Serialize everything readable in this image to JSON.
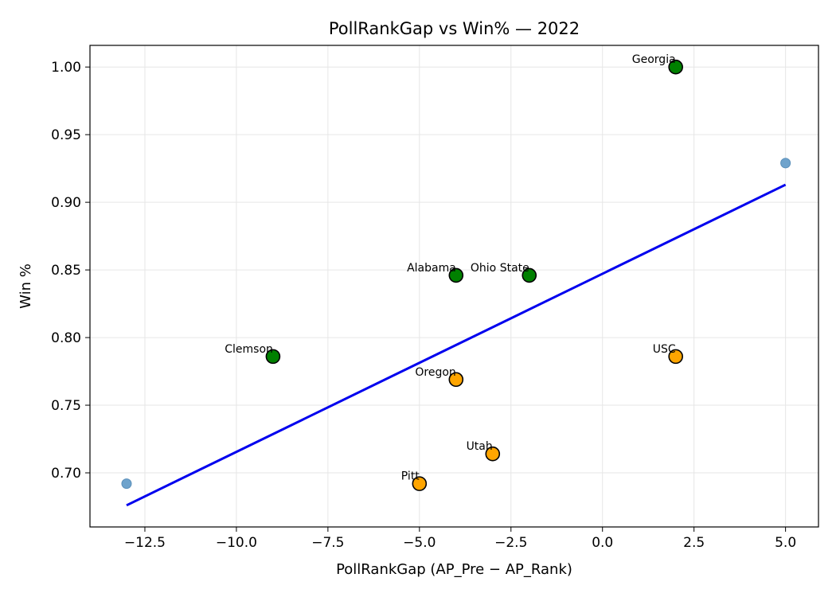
{
  "chart_data": {
    "type": "scatter",
    "title": "PollRankGap vs Win%  — 2022",
    "xlabel": "PollRankGap (AP_Pre − AP_Rank)",
    "ylabel": "Win %",
    "xlim": [
      -14.0,
      5.9
    ],
    "ylim": [
      0.66,
      1.016
    ],
    "grid": true,
    "x_ticks": [
      -12.5,
      -10.0,
      -7.5,
      -5.0,
      -2.5,
      0.0,
      2.5,
      5.0
    ],
    "x_tick_labels": [
      "−12.5",
      "−10.0",
      "−7.5",
      "−5.0",
      "−2.5",
      "0.0",
      "2.5",
      "5.0"
    ],
    "y_ticks": [
      0.7,
      0.75,
      0.8,
      0.85,
      0.9,
      0.95,
      1.0
    ],
    "y_tick_labels": [
      "0.70",
      "0.75",
      "0.80",
      "0.85",
      "0.90",
      "0.95",
      "1.00"
    ],
    "colors": {
      "green": "#008000",
      "orange": "#ffa500",
      "small_point": "#6fa3cc",
      "trend_line": "#0000ee",
      "grid": "#e6e6e6"
    },
    "series": [
      {
        "group": "green",
        "points": [
          {
            "label": "Georgia",
            "x": 2,
            "y": 1.0
          },
          {
            "label": "Alabama",
            "x": -4,
            "y": 0.846
          },
          {
            "label": "Ohio State",
            "x": -2,
            "y": 0.846
          },
          {
            "label": "Clemson",
            "x": -9,
            "y": 0.786
          }
        ]
      },
      {
        "group": "orange",
        "points": [
          {
            "label": "USC",
            "x": 2,
            "y": 0.786
          },
          {
            "label": "Oregon",
            "x": -4,
            "y": 0.769
          },
          {
            "label": "Utah",
            "x": -3,
            "y": 0.714
          },
          {
            "label": "Pitt",
            "x": -5,
            "y": 0.692
          }
        ]
      },
      {
        "group": "small",
        "points": [
          {
            "x": -13,
            "y": 0.692
          },
          {
            "x": 5,
            "y": 0.929
          }
        ]
      }
    ],
    "trend_line": {
      "x": [
        -13,
        5
      ],
      "y": [
        0.676,
        0.913
      ]
    }
  }
}
